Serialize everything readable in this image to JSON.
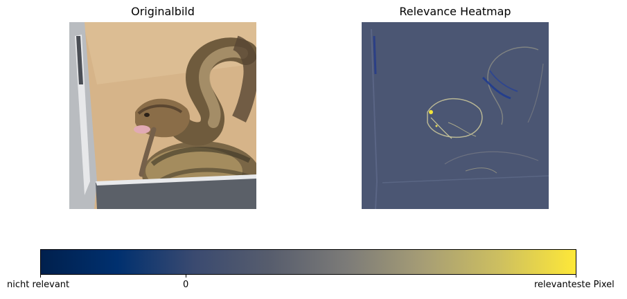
{
  "panels": {
    "original": {
      "title": "Originalbild"
    },
    "heatmap": {
      "title": "Relevance Heatmap"
    }
  },
  "colorbar": {
    "colors": [
      "#00204d",
      "#00306f",
      "#3a4a70",
      "#575d6d",
      "#7c7b78",
      "#a69d75",
      "#cdbf60",
      "#fee838"
    ],
    "ticks": [
      {
        "label": "nicht relevant"
      },
      {
        "label": "0"
      },
      {
        "label": "relevanteste Pixel"
      }
    ]
  },
  "colors": {
    "heatmap_background": "#4b5673",
    "heatmap_edge": "#c8c69a",
    "heatmap_negative": "#1f3a8a",
    "heatmap_hotspot": "#f2e43a"
  }
}
